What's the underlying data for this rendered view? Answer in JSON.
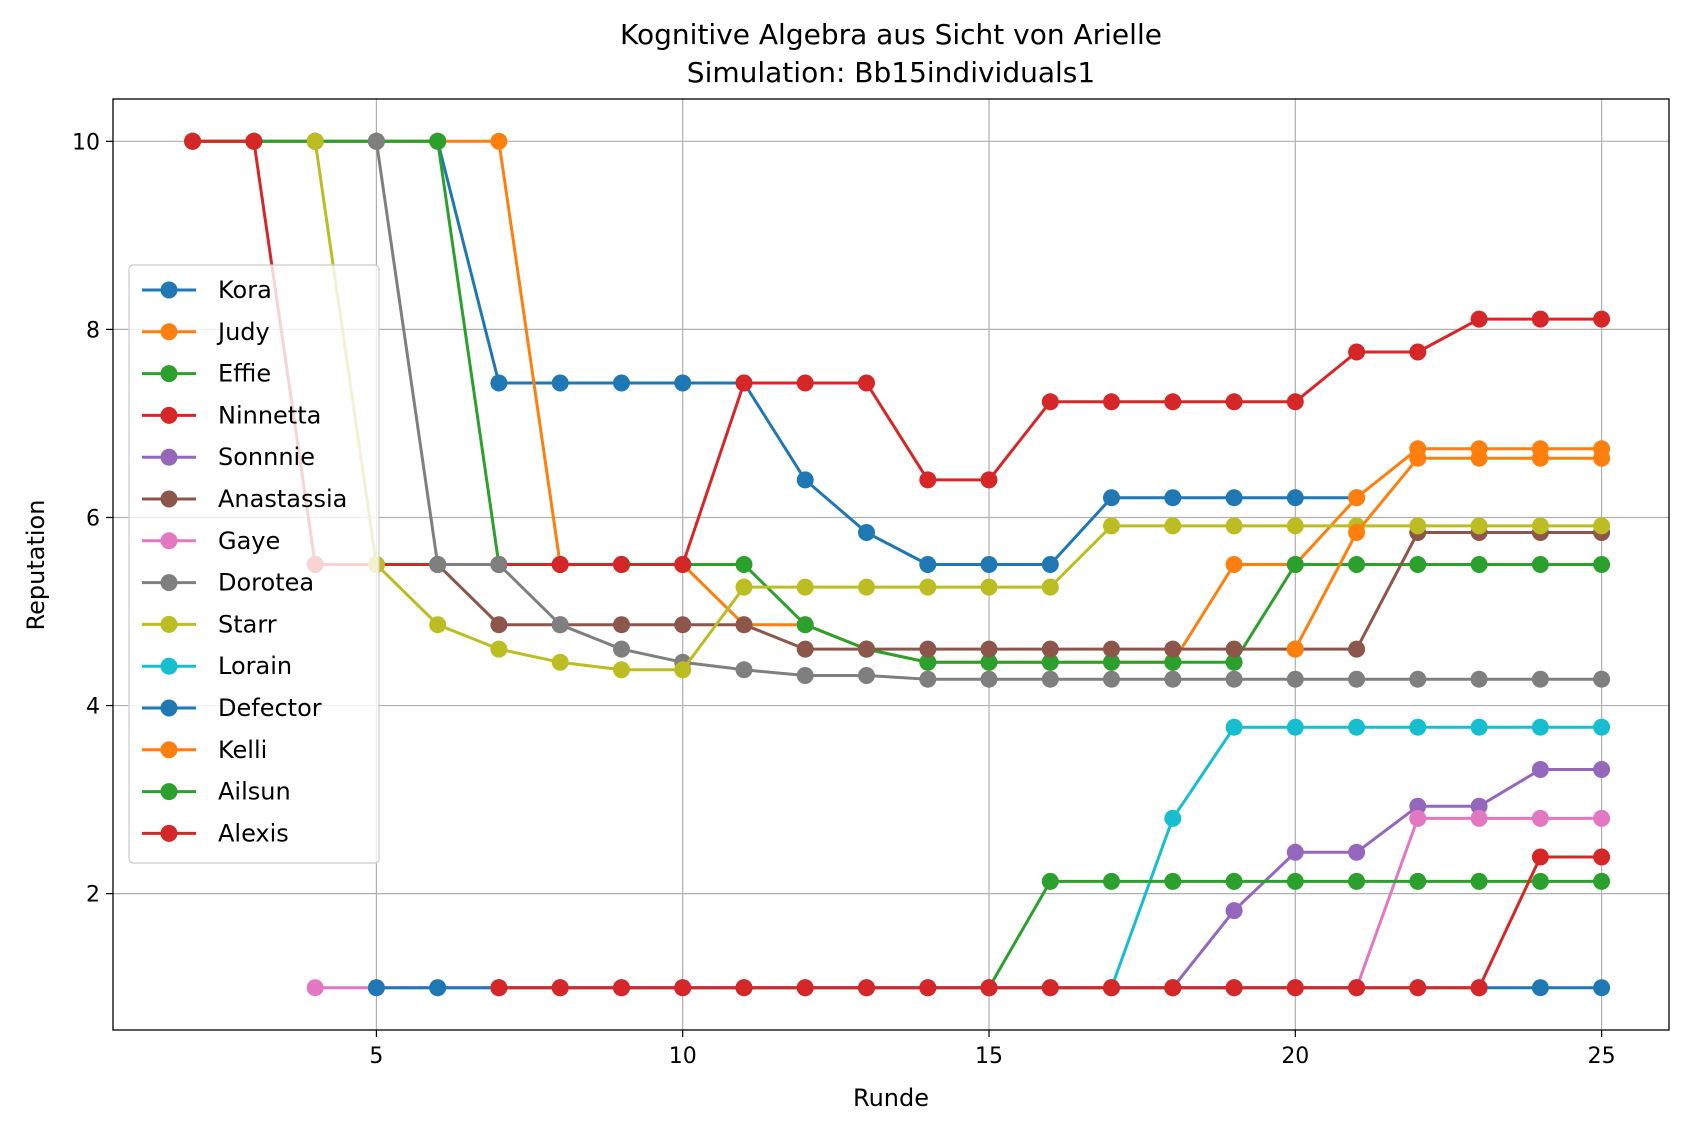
{
  "chart_data": {
    "type": "line",
    "title": "Kognitive Algebra aus Sicht von Arielle",
    "subtitle": "Simulation: Bb15individuals1",
    "xlabel": "Runde",
    "ylabel": "Reputation",
    "xlim": [
      0.7,
      26.1
    ],
    "ylim": [
      0.55,
      10.45
    ],
    "xticks": [
      5,
      10,
      15,
      20,
      25
    ],
    "yticks": [
      2,
      4,
      6,
      8,
      10
    ],
    "grid": true,
    "legend_position": "center-left",
    "series": [
      {
        "name": "Kora",
        "color": "#1f77b4",
        "points": [
          [
            2,
            10
          ],
          [
            3,
            10
          ],
          [
            4,
            10
          ],
          [
            5,
            10
          ],
          [
            6,
            10
          ],
          [
            7,
            7.43
          ],
          [
            8,
            7.43
          ],
          [
            9,
            7.43
          ],
          [
            10,
            7.43
          ],
          [
            11,
            7.43
          ],
          [
            12,
            6.4
          ],
          [
            13,
            5.84
          ],
          [
            14,
            5.5
          ],
          [
            15,
            5.5
          ],
          [
            16,
            5.5
          ],
          [
            17,
            6.21
          ],
          [
            18,
            6.21
          ],
          [
            19,
            6.21
          ],
          [
            20,
            6.21
          ],
          [
            21,
            6.21
          ]
        ]
      },
      {
        "name": "Judy",
        "color": "#ff7f0e",
        "points": [
          [
            2,
            10
          ],
          [
            3,
            10
          ],
          [
            4,
            10
          ],
          [
            5,
            10
          ],
          [
            6,
            10
          ],
          [
            7,
            10
          ],
          [
            8,
            5.5
          ],
          [
            9,
            5.5
          ],
          [
            10,
            5.5
          ],
          [
            11,
            4.86
          ],
          [
            12,
            4.86
          ],
          [
            13,
            4.6
          ],
          [
            14,
            4.46
          ],
          [
            15,
            4.46
          ],
          [
            16,
            4.46
          ],
          [
            17,
            4.46
          ],
          [
            18,
            4.46
          ],
          [
            19,
            5.5
          ],
          [
            20,
            5.5
          ],
          [
            21,
            6.21
          ],
          [
            22,
            6.73
          ],
          [
            23,
            6.73
          ],
          [
            24,
            6.73
          ],
          [
            25,
            6.73
          ]
        ]
      },
      {
        "name": "Effie",
        "color": "#2ca02c",
        "points": [
          [
            2,
            10
          ],
          [
            3,
            10
          ],
          [
            4,
            10
          ],
          [
            5,
            10
          ],
          [
            6,
            10
          ],
          [
            7,
            5.5
          ],
          [
            8,
            5.5
          ],
          [
            9,
            5.5
          ],
          [
            10,
            5.5
          ],
          [
            11,
            5.5
          ],
          [
            12,
            4.86
          ],
          [
            13,
            4.6
          ],
          [
            14,
            4.46
          ],
          [
            15,
            4.46
          ],
          [
            16,
            4.46
          ],
          [
            17,
            4.46
          ],
          [
            18,
            4.46
          ],
          [
            19,
            4.46
          ],
          [
            20,
            5.5
          ],
          [
            21,
            5.5
          ],
          [
            22,
            5.5
          ],
          [
            23,
            5.5
          ],
          [
            24,
            5.5
          ],
          [
            25,
            5.5
          ]
        ]
      },
      {
        "name": "Ninnetta",
        "color": "#d62728",
        "points": [
          [
            2,
            10
          ],
          [
            3,
            10
          ],
          [
            4,
            5.5
          ],
          [
            5,
            5.5
          ],
          [
            6,
            5.5
          ],
          [
            7,
            5.5
          ],
          [
            8,
            5.5
          ],
          [
            9,
            5.5
          ],
          [
            10,
            5.5
          ],
          [
            11,
            7.43
          ],
          [
            12,
            7.43
          ],
          [
            13,
            7.43
          ],
          [
            14,
            6.4
          ],
          [
            15,
            6.4
          ],
          [
            16,
            7.23
          ],
          [
            17,
            7.23
          ],
          [
            18,
            7.23
          ],
          [
            19,
            7.23
          ],
          [
            20,
            7.23
          ],
          [
            21,
            7.76
          ],
          [
            22,
            7.76
          ],
          [
            23,
            8.11
          ],
          [
            24,
            8.11
          ],
          [
            25,
            8.11
          ]
        ]
      },
      {
        "name": "Sonnnie",
        "color": "#9467bd",
        "points": [
          [
            18,
            1
          ],
          [
            19,
            1.82
          ],
          [
            20,
            2.44
          ],
          [
            21,
            2.44
          ],
          [
            22,
            2.93
          ],
          [
            23,
            2.93
          ],
          [
            24,
            3.32
          ],
          [
            25,
            3.32
          ]
        ]
      },
      {
        "name": "Anastassia",
        "color": "#8c564b",
        "points": [
          [
            6,
            5.5
          ],
          [
            7,
            4.86
          ],
          [
            8,
            4.86
          ],
          [
            9,
            4.86
          ],
          [
            10,
            4.86
          ],
          [
            11,
            4.86
          ],
          [
            12,
            4.6
          ],
          [
            13,
            4.6
          ],
          [
            14,
            4.6
          ],
          [
            15,
            4.6
          ],
          [
            16,
            4.6
          ],
          [
            17,
            4.6
          ],
          [
            18,
            4.6
          ],
          [
            19,
            4.6
          ],
          [
            20,
            4.6
          ],
          [
            21,
            4.6
          ],
          [
            22,
            5.84
          ],
          [
            23,
            5.84
          ],
          [
            24,
            5.84
          ],
          [
            25,
            5.84
          ]
        ]
      },
      {
        "name": "Gaye",
        "color": "#e377c2",
        "points": [
          [
            4,
            1
          ],
          [
            5,
            1
          ],
          [
            6,
            1
          ],
          [
            7,
            1
          ],
          [
            8,
            1
          ],
          [
            9,
            1
          ],
          [
            10,
            1
          ],
          [
            11,
            1
          ],
          [
            12,
            1
          ],
          [
            13,
            1
          ],
          [
            14,
            1
          ],
          [
            15,
            1
          ],
          [
            16,
            1
          ],
          [
            17,
            1
          ],
          [
            18,
            1
          ],
          [
            19,
            1
          ],
          [
            20,
            1
          ],
          [
            21,
            1
          ],
          [
            22,
            2.8
          ],
          [
            23,
            2.8
          ],
          [
            24,
            2.8
          ],
          [
            25,
            2.8
          ]
        ]
      },
      {
        "name": "Dorotea",
        "color": "#7f7f7f",
        "points": [
          [
            5,
            10
          ],
          [
            6,
            5.5
          ],
          [
            7,
            5.5
          ],
          [
            8,
            4.86
          ],
          [
            9,
            4.6
          ],
          [
            10,
            4.46
          ],
          [
            11,
            4.38
          ],
          [
            12,
            4.32
          ],
          [
            13,
            4.32
          ],
          [
            14,
            4.28
          ],
          [
            15,
            4.28
          ],
          [
            16,
            4.28
          ],
          [
            17,
            4.28
          ],
          [
            18,
            4.28
          ],
          [
            19,
            4.28
          ],
          [
            20,
            4.28
          ],
          [
            21,
            4.28
          ],
          [
            22,
            4.28
          ],
          [
            23,
            4.28
          ],
          [
            24,
            4.28
          ],
          [
            25,
            4.28
          ]
        ]
      },
      {
        "name": "Starr",
        "color": "#bcbd22",
        "points": [
          [
            4,
            10
          ],
          [
            5,
            5.5
          ],
          [
            6,
            4.86
          ],
          [
            7,
            4.6
          ],
          [
            8,
            4.46
          ],
          [
            9,
            4.38
          ],
          [
            10,
            4.38
          ],
          [
            11,
            5.26
          ],
          [
            12,
            5.26
          ],
          [
            13,
            5.26
          ],
          [
            14,
            5.26
          ],
          [
            15,
            5.26
          ],
          [
            16,
            5.26
          ],
          [
            17,
            5.91
          ],
          [
            18,
            5.91
          ],
          [
            19,
            5.91
          ],
          [
            20,
            5.91
          ],
          [
            21,
            5.91
          ],
          [
            22,
            5.91
          ],
          [
            23,
            5.91
          ],
          [
            24,
            5.91
          ],
          [
            25,
            5.91
          ]
        ]
      },
      {
        "name": "Lorain",
        "color": "#17becf",
        "points": [
          [
            17,
            1
          ],
          [
            18,
            2.8
          ],
          [
            19,
            3.77
          ],
          [
            20,
            3.77
          ],
          [
            21,
            3.77
          ],
          [
            22,
            3.77
          ],
          [
            23,
            3.77
          ],
          [
            24,
            3.77
          ],
          [
            25,
            3.77
          ]
        ]
      },
      {
        "name": "Defector",
        "color": "#1f77b4",
        "points": [
          [
            5,
            1
          ],
          [
            6,
            1
          ],
          [
            7,
            1
          ],
          [
            8,
            1
          ],
          [
            9,
            1
          ],
          [
            10,
            1
          ],
          [
            11,
            1
          ],
          [
            12,
            1
          ],
          [
            13,
            1
          ],
          [
            14,
            1
          ],
          [
            15,
            1
          ],
          [
            16,
            1
          ],
          [
            17,
            1
          ],
          [
            18,
            1
          ],
          [
            19,
            1
          ],
          [
            20,
            1
          ],
          [
            21,
            1
          ],
          [
            22,
            1
          ],
          [
            23,
            1
          ],
          [
            24,
            1
          ],
          [
            25,
            1
          ]
        ]
      },
      {
        "name": "Kelli",
        "color": "#ff7f0e",
        "points": [
          [
            20,
            4.6
          ],
          [
            21,
            5.84
          ],
          [
            22,
            6.63
          ],
          [
            23,
            6.63
          ],
          [
            24,
            6.63
          ],
          [
            25,
            6.63
          ]
        ]
      },
      {
        "name": "Ailsun",
        "color": "#2ca02c",
        "points": [
          [
            15,
            1
          ],
          [
            16,
            2.13
          ],
          [
            17,
            2.13
          ],
          [
            18,
            2.13
          ],
          [
            19,
            2.13
          ],
          [
            20,
            2.13
          ],
          [
            21,
            2.13
          ],
          [
            22,
            2.13
          ],
          [
            23,
            2.13
          ],
          [
            24,
            2.13
          ],
          [
            25,
            2.13
          ]
        ]
      },
      {
        "name": "Alexis",
        "color": "#d62728",
        "points": [
          [
            7,
            1
          ],
          [
            8,
            1
          ],
          [
            9,
            1
          ],
          [
            10,
            1
          ],
          [
            11,
            1
          ],
          [
            12,
            1
          ],
          [
            13,
            1
          ],
          [
            14,
            1
          ],
          [
            15,
            1
          ],
          [
            16,
            1
          ],
          [
            17,
            1
          ],
          [
            18,
            1
          ],
          [
            19,
            1
          ],
          [
            20,
            1
          ],
          [
            21,
            1
          ],
          [
            22,
            1
          ],
          [
            23,
            1
          ],
          [
            24,
            2.39
          ],
          [
            25,
            2.39
          ]
        ]
      }
    ]
  }
}
